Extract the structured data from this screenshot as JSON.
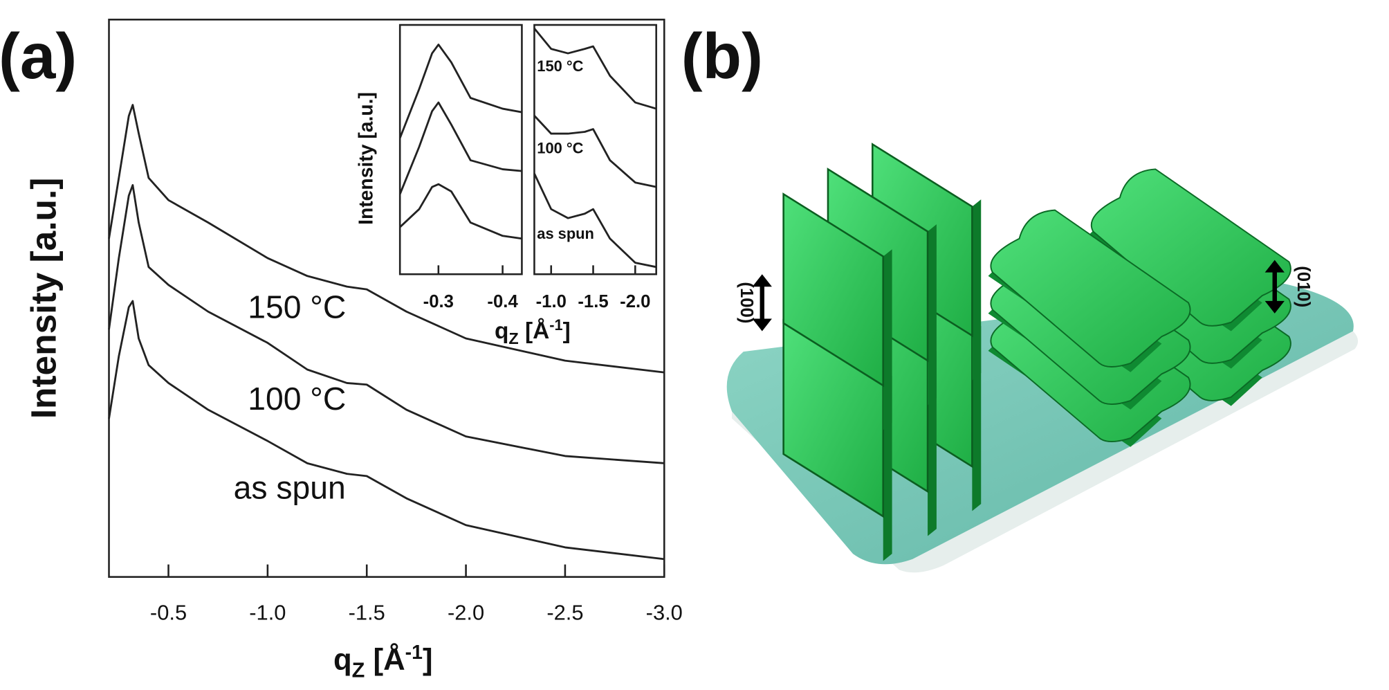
{
  "panel_labels": [
    "(a)",
    "(b)"
  ],
  "chart_data": [
    {
      "type": "line",
      "ylabel": "Intensity [a.u.]",
      "xlabel": [
        "q",
        "Z",
        " [Å",
        "-1",
        "]"
      ],
      "x": [
        -0.2,
        -0.25,
        -0.3,
        -0.32,
        -0.35,
        -0.4,
        -0.5,
        -0.7,
        -1.0,
        -1.2,
        -1.4,
        -1.5,
        -1.7,
        -2.0,
        -2.5,
        -3.0
      ],
      "series": [
        {
          "name": "150 °C",
          "color": "#222222",
          "values": [
            60.7,
            71.6,
            82.7,
            84.7,
            79.6,
            71.6,
            67.6,
            63.6,
            57.2,
            54.0,
            52.1,
            51.6,
            47.6,
            42.8,
            38.8,
            36.7
          ]
        },
        {
          "name": "100 °C",
          "color": "#222222",
          "values": [
            44.4,
            57.2,
            68.4,
            70.3,
            63.6,
            55.6,
            52.4,
            47.6,
            42.0,
            37.2,
            34.8,
            34.5,
            30.0,
            25.2,
            21.7,
            20.4
          ]
        },
        {
          "name": "as spun",
          "color": "#222222",
          "values": [
            28.4,
            39.6,
            48.4,
            49.5,
            42.8,
            38.0,
            34.8,
            30.0,
            24.4,
            20.4,
            18.5,
            18.1,
            14.1,
            9.3,
            5.3,
            3.2
          ]
        }
      ],
      "xlim": [
        -0.2,
        -3.0
      ],
      "ylim": [
        0,
        100
      ],
      "xticks": [
        -0.5,
        {
          "value": -1,
          "label": "-1.0"
        },
        -1.5,
        {
          "value": -2,
          "label": "-2.0"
        },
        -2.5,
        {
          "value": -3,
          "label": "-3.0"
        }
      ]
    },
    {
      "type": "line",
      "ylabel": "Intensity [a.u.]",
      "xlabel": [
        "q",
        "Z",
        " [Å",
        "-1",
        "]"
      ],
      "x": [
        -0.24,
        -0.27,
        -0.29,
        -0.3,
        -0.32,
        -0.35,
        -0.4,
        -0.43
      ],
      "series": [
        {
          "color": "#222222",
          "values": [
            54.6,
            74.3,
            88.6,
            92.1,
            85.0,
            70.7,
            66.4,
            65.0
          ]
        },
        {
          "color": "#222222",
          "values": [
            32.1,
            51.1,
            65.4,
            68.9,
            60.0,
            45.7,
            42.1,
            41.4
          ]
        },
        {
          "color": "#222222",
          "values": [
            18.9,
            26.1,
            35.0,
            36.1,
            33.2,
            20.7,
            15.4,
            14.3
          ]
        }
      ],
      "xlim": [
        -0.24,
        -0.43
      ],
      "ylim": [
        0,
        100
      ],
      "xticks": [
        -0.3,
        -0.4
      ]
    },
    {
      "type": "line",
      "x": [
        -0.8,
        -1.0,
        -1.2,
        -1.4,
        -1.5,
        -1.7,
        -2.0,
        -2.25
      ],
      "series": [
        {
          "name": "150 °C",
          "color": "#222222",
          "values": [
            98.6,
            90.4,
            88.6,
            90.4,
            91.4,
            79.6,
            68.9,
            66.4
          ]
        },
        {
          "name": "100 °C",
          "color": "#222222",
          "values": [
            63.6,
            56.4,
            56.4,
            57.1,
            58.2,
            45.7,
            36.8,
            35.0
          ]
        },
        {
          "name": "as spun",
          "color": "#222222",
          "values": [
            40.4,
            26.1,
            22.5,
            24.3,
            26.1,
            14.3,
            4.6,
            2.9
          ]
        }
      ],
      "xlim": [
        -0.8,
        -2.25
      ],
      "ylim": [
        0,
        100
      ],
      "xticks": [
        {
          "value": -1,
          "label": "-1.0"
        },
        -1.5,
        {
          "value": -2,
          "label": "-2.0"
        }
      ]
    }
  ],
  "illustration": {
    "annotations": [
      "(100)",
      "(010)"
    ]
  }
}
